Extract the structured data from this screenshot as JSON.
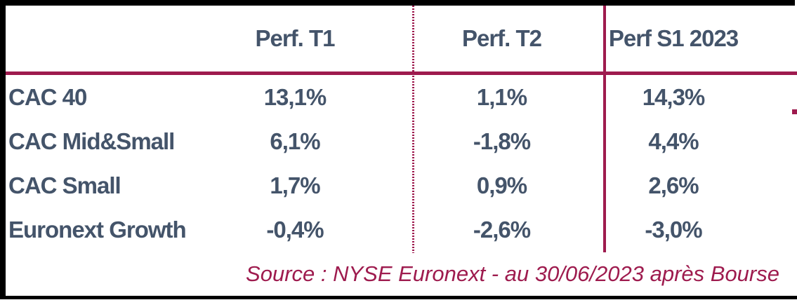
{
  "chart_data": {
    "type": "table",
    "title": "",
    "columns": [
      "",
      "Perf. T1",
      "Perf. T2",
      "Perf S1 2023"
    ],
    "rows": [
      [
        "CAC 40",
        "13,1%",
        "1,1%",
        "14,3%"
      ],
      [
        "CAC Mid&Small",
        "6,1%",
        "-1,8%",
        "4,4%"
      ],
      [
        "CAC Small",
        "1,7%",
        "0,9%",
        "2,6%"
      ],
      [
        "Euronext Growth",
        "-0,4%",
        "-2,6%",
        "-3,0%"
      ]
    ],
    "source": "Source : NYSE Euronext - au 30/06/2023 après Bourse"
  },
  "colors": {
    "text": "#44546A",
    "accent": "#9E1B4E",
    "border": "#000000",
    "background": "#FFFFFF"
  }
}
